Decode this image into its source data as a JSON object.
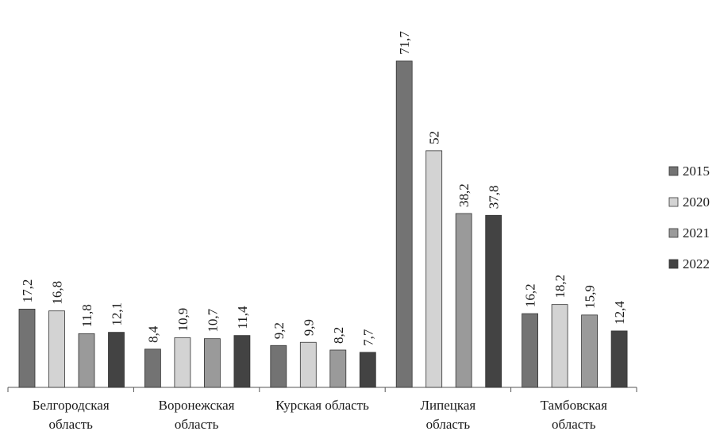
{
  "chart_data": {
    "type": "bar",
    "title": "",
    "xlabel": "",
    "ylabel": "",
    "ylim": [
      0,
      75
    ],
    "grid": false,
    "legend_position": "right",
    "categories": [
      [
        "Белгородская",
        "область"
      ],
      [
        "Воронежская",
        "область"
      ],
      [
        "Курская область"
      ],
      [
        "Липецкая",
        "область"
      ],
      [
        "Тамбовская",
        "область"
      ]
    ],
    "series": [
      {
        "name": "2015",
        "color": "#737373",
        "values": [
          17.2,
          8.4,
          9.2,
          71.7,
          16.2
        ],
        "labels": [
          "17,2",
          "8,4",
          "9,2",
          "71,7",
          "16,2"
        ]
      },
      {
        "name": "2020",
        "color": "#d3d3d3",
        "values": [
          16.8,
          10.9,
          9.9,
          52,
          18.2
        ],
        "labels": [
          "16,8",
          "10,9",
          "9,9",
          "52",
          "18,2"
        ]
      },
      {
        "name": "2021",
        "color": "#9a9a9a",
        "values": [
          11.8,
          10.7,
          8.2,
          38.2,
          15.9
        ],
        "labels": [
          "11,8",
          "10,7",
          "8,2",
          "38,2",
          "15,9"
        ]
      },
      {
        "name": "2022",
        "color": "#434343",
        "values": [
          12.1,
          11.4,
          7.7,
          37.8,
          12.4
        ],
        "labels": [
          "12,1",
          "11,4",
          "7,7",
          "37,8",
          "12,4"
        ]
      }
    ]
  }
}
